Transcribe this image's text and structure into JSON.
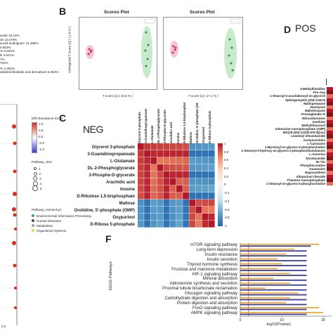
{
  "panels": {
    "B": {
      "letter": "B",
      "plot1_title": "Scores Plot",
      "plot2_title": "Scores Plot",
      "ylabel": "Orthogonal T score [1] ( 11.9 % )",
      "xlabel1": "T score [1] ( 19.6 % )",
      "xlabel2": "T score [1] ( 17.1 % )"
    },
    "C": {
      "letter": "C",
      "tag": "NEG"
    },
    "D": {
      "letter": "D",
      "tag": "POS"
    },
    "F": {
      "letter": "F",
      "ylabel": "KEGG Pathways",
      "xlabel": "-log10(Pvalue)",
      "xticks": [
        "0",
        "10",
        "20"
      ]
    }
  },
  "left_top_text": [
    "acids 18.31%",
    "ds 12.676%",
    "anoid analogues* 11.268%",
    "0.563%",
    "% 5.634%",
    "ls 3.521%",
    "7%",
    "704%",
    "% 4.362%",
    "eptides/Alkaloids and derivatives 5.352%"
  ],
  "left_legend": {
    "diff_title": "Diff.Abundance.Score",
    "diff_ticks": [
      "1.0",
      "0.5",
      "0.0",
      "-0.5",
      "-1.0"
    ],
    "size_title": "Pathway_Size",
    "size_items": [
      "1",
      "2",
      "3",
      "4",
      "5"
    ],
    "hier_title": "Pathway_Hierarchy1",
    "hier_items": [
      {
        "label": "Environmental Information Processing",
        "color": "#2ca6a4"
      },
      {
        "label": "Human Diseases",
        "color": "#4a4a4a"
      },
      {
        "label": "Metabolism",
        "color": "#9a9a9a"
      },
      {
        "label": "Organismal Systems",
        "color": "#e8d44d"
      }
    ],
    "bottom_tick": "0.2"
  },
  "heatmap": {
    "labels": [
      "Glycerol 3-phosphate",
      "3-Guanidinopropanoate",
      "L-Glutamate",
      "DL-2-Phosphoglycerate",
      "3-Phospho-D-glycerate",
      "Arachidic acid",
      "Inosine",
      "D-Ribulose 1,5-bisphosphate",
      "Maltose",
      "Orotidine, 5'-phosphate (OMP)",
      "Oxypurinol",
      "D-Ribose 5-phosphate"
    ],
    "scale_ticks": [
      "1",
      "0.8",
      "0.6",
      "0.4",
      "0.2",
      "0",
      "-0.2",
      "-0.4",
      "-0.6",
      "-0.8",
      "-1"
    ]
  },
  "pos_metabolites": [
    "3-Methylhistidine",
    "Pro-Asp",
    "1-Stearoyl-2-arachidonoyl-sn-glycerol",
    "Sphingomyelin (d18:1/18:0)",
    "Maltopentaose",
    "Stachyose",
    "Maltohexaose",
    "Prostaglandin I2",
    "Nitrosobenzene",
    "Xanthine",
    "Methylthiouracil",
    "Adenosine monophosphate (AMP)",
    "MG(18:2(9Z,12Z)/0:0/0:0)[rac]",
    "Linoleoyl ethanolamide",
    "Acetylcarnitine",
    "L-Carnosine",
    "1-Myristoyl-sn-glycero-3-phosphocholine",
    "1-Stearoyl-2-hydroxy-sn-glycero-3-phosphoethanolamine",
    "L-Anserine",
    "Nicotinamide",
    "Ile-Thr",
    "Phosphocreatine",
    "Guanosine",
    "Hypoxanthine",
    "Allopurinol riboside",
    "Thiamine monophosphate",
    "1-Stearoyl-sn-glycero-3-phosphocholine"
  ],
  "kegg": {
    "pathways": [
      "mTOR signaling pathway",
      "Long-term depression",
      "Insulin resistance",
      "Insulin secretion",
      "Thyroid hormone synthesis",
      "Fructose and mannose metabolism",
      "HIF-1 signaling pathway",
      "Mineral absorption",
      "Aldosterone synthesis and secretion",
      "Proximal tubule bicarbonate reclamation",
      "Glucagon signaling pathway",
      "Carbohydrate digestion and absorption",
      "Protein digestion and absorption",
      "FoxO signaling pathway",
      "AMPK signaling pathway"
    ]
  },
  "chart_data": {
    "type": "bar",
    "orientation": "horizontal",
    "categories": [
      "mTOR signaling pathway",
      "Long-term depression",
      "Insulin resistance",
      "Insulin secretion",
      "Thyroid hormone synthesis",
      "Fructose and mannose metabolism",
      "HIF-1 signaling pathway",
      "Mineral absorption",
      "Aldosterone synthesis and secretion",
      "Proximal tubule bicarbonate reclamation",
      "Glucagon signaling pathway",
      "Carbohydrate digestion and absorption",
      "Protein digestion and absorption",
      "FoxO signaling pathway",
      "AMPK signaling pathway"
    ],
    "series": [
      {
        "values": [
          19,
          13,
          11,
          9,
          10,
          9,
          12,
          8,
          12,
          6,
          14,
          12,
          11,
          19,
          20
        ],
        "color": "#f0a020"
      },
      {
        "values": [
          17,
          16,
          16,
          16,
          16,
          16,
          16,
          16,
          16,
          16,
          16,
          16,
          16,
          16,
          16
        ],
        "color": "#3a3f9a"
      }
    ],
    "xlabel": "-log10(Pvalue)",
    "ylabel": "KEGG Pathways",
    "xlim": [
      0,
      22
    ],
    "xticks": [
      0,
      10,
      20
    ]
  },
  "colors": {
    "red": "#c0392b",
    "blue": "#2166ac",
    "orange": "#f0a020",
    "navy": "#3a3f9a",
    "green_ellipse": "#b9e6bd",
    "pink_ellipse": "#f4b8c8"
  }
}
